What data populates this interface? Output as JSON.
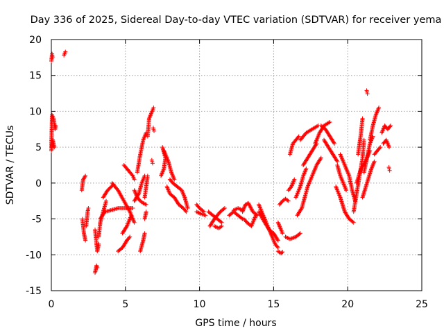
{
  "chart_data": {
    "type": "scatter",
    "title": "Day 336 of 2025, Sidereal Day-to-day VTEC variation (SDTVAR) for receiver yema",
    "xlabel": "GPS time / hours",
    "ylabel": "SDTVAR / TECUs",
    "xlim": [
      0,
      25
    ],
    "ylim": [
      -15,
      20
    ],
    "xticks": [
      0,
      5,
      10,
      15,
      20,
      25
    ],
    "yticks": [
      -15,
      -10,
      -5,
      0,
      5,
      10,
      15,
      20
    ],
    "xtick_labels": [
      "0",
      "5",
      "10",
      "15",
      "20",
      "25"
    ],
    "ytick_labels": [
      "-15",
      "-10",
      "-5",
      "0",
      "5",
      "10",
      "15",
      "20"
    ],
    "grid": true,
    "marker": "+",
    "color": "#ff0000",
    "tracks": [
      [
        [
          0.0,
          17.0
        ],
        [
          0.05,
          18.0
        ],
        [
          0.08,
          17.5
        ]
      ],
      [
        [
          0.0,
          5.0
        ],
        [
          0.05,
          9.5
        ],
        [
          0.15,
          9.0
        ],
        [
          0.25,
          7.5
        ],
        [
          0.3,
          8.0
        ]
      ],
      [
        [
          0.0,
          4.5
        ],
        [
          0.1,
          6.0
        ],
        [
          0.2,
          5.0
        ]
      ],
      [
        [
          0.85,
          17.8
        ],
        [
          0.95,
          18.3
        ]
      ],
      [
        [
          2.05,
          -1.0
        ],
        [
          2.15,
          0.5
        ],
        [
          2.3,
          1.0
        ]
      ],
      [
        [
          2.1,
          -5.0
        ],
        [
          2.2,
          -7.0
        ],
        [
          2.3,
          -8.0
        ]
      ],
      [
        [
          2.35,
          -6.0
        ],
        [
          2.45,
          -4.0
        ],
        [
          2.5,
          -3.5
        ]
      ],
      [
        [
          2.95,
          -12.5
        ],
        [
          3.05,
          -11.5
        ],
        [
          3.1,
          -11.8
        ]
      ],
      [
        [
          2.95,
          -6.5
        ],
        [
          3.1,
          -9.5
        ],
        [
          3.2,
          -8.5
        ]
      ],
      [
        [
          3.2,
          -7.5
        ],
        [
          3.3,
          -5.5
        ],
        [
          3.5,
          -4.0
        ],
        [
          3.7,
          -2.5
        ]
      ],
      [
        [
          3.3,
          -5.0
        ],
        [
          3.6,
          -4.0
        ],
        [
          4.0,
          -3.8
        ],
        [
          4.5,
          -3.5
        ],
        [
          5.0,
          -3.5
        ],
        [
          5.5,
          -3.5
        ]
      ],
      [
        [
          3.5,
          -2.0
        ],
        [
          3.8,
          -1.0
        ],
        [
          4.2,
          -0.2
        ]
      ],
      [
        [
          4.1,
          0.0
        ],
        [
          4.5,
          -1.0
        ],
        [
          4.9,
          -2.5
        ],
        [
          5.3,
          -4.0
        ],
        [
          5.6,
          -5.5
        ]
      ],
      [
        [
          4.5,
          -9.5
        ],
        [
          4.8,
          -9.0
        ],
        [
          5.1,
          -8.0
        ],
        [
          5.3,
          -7.5
        ]
      ],
      [
        [
          4.8,
          -7.0
        ],
        [
          5.1,
          -6.0
        ],
        [
          5.4,
          -4.5
        ]
      ],
      [
        [
          4.9,
          2.5
        ],
        [
          5.1,
          2.0
        ],
        [
          5.3,
          1.5
        ],
        [
          5.5,
          1.0
        ],
        [
          5.6,
          0.5
        ]
      ],
      [
        [
          5.6,
          -1.0
        ],
        [
          5.8,
          -2.0
        ],
        [
          6.0,
          -2.5
        ],
        [
          6.2,
          -2.8
        ],
        [
          6.4,
          -3.0
        ]
      ],
      [
        [
          5.6,
          -2.5
        ],
        [
          5.9,
          -1.5
        ],
        [
          6.1,
          0.0
        ],
        [
          6.3,
          1.0
        ]
      ],
      [
        [
          5.8,
          1.5
        ],
        [
          6.0,
          4.0
        ],
        [
          6.2,
          6.0
        ],
        [
          6.4,
          7.0
        ]
      ],
      [
        [
          6.0,
          -9.5
        ],
        [
          6.2,
          -8.0
        ],
        [
          6.3,
          -7.0
        ]
      ],
      [
        [
          6.3,
          -5.0
        ],
        [
          6.4,
          -4.0
        ]
      ],
      [
        [
          6.3,
          -2.0
        ],
        [
          6.4,
          -0.5
        ],
        [
          6.5,
          1.0
        ]
      ],
      [
        [
          6.5,
          6.5
        ],
        [
          6.6,
          9.0
        ],
        [
          6.8,
          10.0
        ],
        [
          6.9,
          10.5
        ]
      ],
      [
        [
          6.9,
          7.5
        ]
      ],
      [
        [
          6.8,
          3.0
        ]
      ],
      [
        [
          7.4,
          1.0
        ],
        [
          7.6,
          2.0
        ],
        [
          7.7,
          3.5
        ],
        [
          7.5,
          5.0
        ]
      ],
      [
        [
          7.6,
          4.5
        ],
        [
          7.9,
          3.0
        ],
        [
          8.1,
          1.5
        ],
        [
          8.3,
          0.5
        ]
      ],
      [
        [
          7.8,
          -0.5
        ],
        [
          8.0,
          -1.5
        ],
        [
          8.3,
          -2.0
        ],
        [
          8.6,
          -3.0
        ],
        [
          8.9,
          -3.5
        ],
        [
          9.1,
          -4.0
        ]
      ],
      [
        [
          8.0,
          0.5
        ],
        [
          8.2,
          0.0
        ],
        [
          8.5,
          -0.5
        ],
        [
          8.8,
          -1.0
        ],
        [
          9.0,
          -2.0
        ],
        [
          9.2,
          -3.5
        ]
      ],
      [
        [
          9.8,
          -4.0
        ],
        [
          10.1,
          -4.3
        ],
        [
          10.4,
          -4.5
        ]
      ],
      [
        [
          9.8,
          -3.0
        ],
        [
          10.0,
          -3.5
        ],
        [
          10.3,
          -4.0
        ]
      ],
      [
        [
          10.6,
          -4.0
        ],
        [
          10.9,
          -4.5
        ],
        [
          11.2,
          -5.0
        ],
        [
          11.5,
          -5.5
        ]
      ],
      [
        [
          10.7,
          -6.0
        ],
        [
          11.0,
          -5.0
        ],
        [
          11.4,
          -4.0
        ],
        [
          11.7,
          -3.5
        ]
      ],
      [
        [
          11.0,
          -6.0
        ],
        [
          11.3,
          -6.3
        ],
        [
          11.5,
          -6.0
        ]
      ],
      [
        [
          12.0,
          -4.5
        ],
        [
          12.3,
          -4.0
        ],
        [
          12.6,
          -4.5
        ],
        [
          12.9,
          -5.0
        ]
      ],
      [
        [
          12.3,
          -3.8
        ],
        [
          12.6,
          -3.5
        ],
        [
          12.9,
          -3.8
        ]
      ],
      [
        [
          12.9,
          -4.0
        ],
        [
          13.1,
          -3.0
        ],
        [
          13.3,
          -2.8
        ],
        [
          13.6,
          -4.0
        ],
        [
          13.9,
          -4.5
        ]
      ],
      [
        [
          13.0,
          -5.0
        ],
        [
          13.2,
          -5.5
        ],
        [
          13.5,
          -6.0
        ],
        [
          13.8,
          -4.5
        ]
      ],
      [
        [
          14.0,
          -3.0
        ],
        [
          14.3,
          -4.5
        ],
        [
          14.6,
          -6.0
        ],
        [
          14.9,
          -7.5
        ],
        [
          15.1,
          -8.5
        ],
        [
          15.3,
          -9.0
        ]
      ],
      [
        [
          14.0,
          -4.0
        ],
        [
          14.4,
          -5.5
        ],
        [
          14.7,
          -6.5
        ],
        [
          15.0,
          -7.0
        ],
        [
          15.3,
          -8.0
        ]
      ],
      [
        [
          15.3,
          -5.5
        ],
        [
          15.5,
          -6.5
        ],
        [
          15.6,
          -7.0
        ]
      ],
      [
        [
          15.3,
          -9.5
        ],
        [
          15.5,
          -9.8
        ],
        [
          15.6,
          -9.6
        ]
      ],
      [
        [
          15.4,
          -3.0
        ],
        [
          15.6,
          -2.5
        ],
        [
          15.8,
          -2.2
        ],
        [
          16.0,
          -2.5
        ]
      ],
      [
        [
          15.8,
          -7.5
        ],
        [
          16.1,
          -7.8
        ],
        [
          16.5,
          -7.5
        ],
        [
          16.8,
          -7.0
        ]
      ],
      [
        [
          16.0,
          -1.0
        ],
        [
          16.2,
          -0.5
        ],
        [
          16.4,
          0.5
        ]
      ],
      [
        [
          16.1,
          4.0
        ],
        [
          16.3,
          5.5
        ],
        [
          16.5,
          6.0
        ],
        [
          16.7,
          6.5
        ]
      ],
      [
        [
          16.5,
          -2.0
        ],
        [
          16.8,
          -0.5
        ],
        [
          17.0,
          1.0
        ],
        [
          17.2,
          2.0
        ]
      ],
      [
        [
          16.6,
          -4.5
        ],
        [
          16.9,
          -3.5
        ],
        [
          17.1,
          -2.0
        ],
        [
          17.3,
          -0.5
        ]
      ],
      [
        [
          16.8,
          6.0
        ],
        [
          17.2,
          7.0
        ],
        [
          17.6,
          7.5
        ],
        [
          18.0,
          8.0
        ]
      ],
      [
        [
          17.0,
          2.5
        ],
        [
          17.3,
          3.5
        ],
        [
          17.6,
          4.5
        ],
        [
          17.9,
          5.5
        ]
      ],
      [
        [
          17.3,
          -0.5
        ],
        [
          17.6,
          1.0
        ],
        [
          17.9,
          2.5
        ],
        [
          18.2,
          3.5
        ]
      ],
      [
        [
          17.8,
          5.5
        ],
        [
          18.1,
          7.0
        ],
        [
          18.4,
          8.0
        ],
        [
          18.8,
          8.5
        ]
      ],
      [
        [
          18.2,
          8.0
        ],
        [
          18.5,
          7.5
        ],
        [
          18.8,
          6.5
        ],
        [
          19.1,
          5.5
        ]
      ],
      [
        [
          18.4,
          6.0
        ],
        [
          18.7,
          5.0
        ],
        [
          19.0,
          4.0
        ],
        [
          19.3,
          3.0
        ]
      ],
      [
        [
          19.3,
          2.5
        ],
        [
          19.5,
          1.0
        ],
        [
          19.7,
          0.0
        ],
        [
          19.9,
          -1.0
        ]
      ],
      [
        [
          19.2,
          -0.5
        ],
        [
          19.5,
          -2.0
        ],
        [
          19.8,
          -4.0
        ],
        [
          20.1,
          -5.0
        ],
        [
          20.4,
          -5.5
        ]
      ],
      [
        [
          19.5,
          4.0
        ],
        [
          19.8,
          2.5
        ],
        [
          20.1,
          1.0
        ],
        [
          20.3,
          -1.0
        ],
        [
          20.5,
          -2.5
        ]
      ],
      [
        [
          20.4,
          -4.0
        ],
        [
          20.6,
          -1.5
        ],
        [
          20.8,
          1.0
        ],
        [
          21.0,
          3.5
        ],
        [
          21.1,
          6.0
        ]
      ],
      [
        [
          20.7,
          4.0
        ],
        [
          20.9,
          7.0
        ],
        [
          21.0,
          9.0
        ]
      ],
      [
        [
          20.6,
          0.0
        ],
        [
          20.9,
          2.0
        ],
        [
          21.2,
          3.0
        ],
        [
          21.5,
          4.5
        ]
      ],
      [
        [
          21.0,
          -2.0
        ],
        [
          21.3,
          0.0
        ],
        [
          21.6,
          2.0
        ],
        [
          21.8,
          3.0
        ]
      ],
      [
        [
          21.1,
          1.5
        ],
        [
          21.3,
          3.5
        ],
        [
          21.5,
          5.5
        ],
        [
          21.7,
          6.5
        ]
      ],
      [
        [
          21.3,
          12.7
        ]
      ],
      [
        [
          21.5,
          6.0
        ],
        [
          21.7,
          8.0
        ],
        [
          21.9,
          9.5
        ],
        [
          22.1,
          10.5
        ]
      ],
      [
        [
          21.8,
          4.0
        ],
        [
          22.0,
          4.5
        ],
        [
          22.2,
          5.0
        ]
      ],
      [
        [
          22.3,
          7.0
        ],
        [
          22.5,
          8.0
        ],
        [
          22.7,
          7.5
        ],
        [
          22.9,
          8.0
        ]
      ],
      [
        [
          22.4,
          5.5
        ],
        [
          22.6,
          6.0
        ],
        [
          22.8,
          5.0
        ]
      ],
      [
        [
          22.8,
          2.0
        ]
      ]
    ]
  }
}
